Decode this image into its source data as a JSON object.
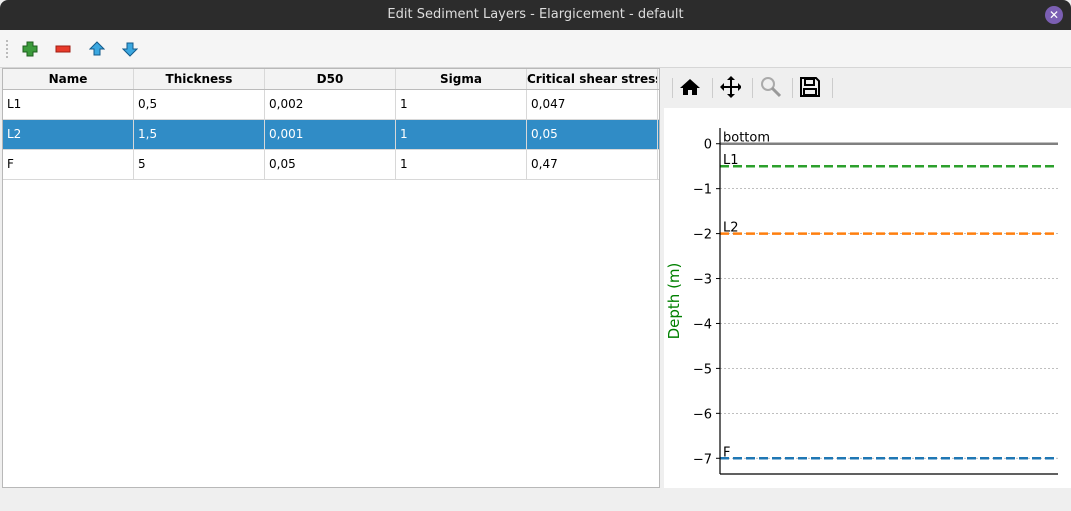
{
  "window": {
    "title": "Edit Sediment Layers - Elargicement - default",
    "close_icon": "close-icon"
  },
  "toolbar": {
    "add": "add-layer",
    "remove": "remove-layer",
    "up": "move-up",
    "down": "move-down"
  },
  "table": {
    "columns": [
      "Name",
      "Thickness",
      "D50",
      "Sigma",
      "Critical shear stress"
    ],
    "rows": [
      [
        "L1",
        "0,5",
        "0,002",
        "1",
        "0,047"
      ],
      [
        "L2",
        "1,5",
        "0,001",
        "1",
        "0,05"
      ],
      [
        "F",
        "5",
        "0,05",
        "1",
        "0,47"
      ]
    ],
    "selected_row": 1,
    "selection_color": "#308cc6"
  },
  "plot_toolbar": [
    "home-icon",
    "pan-icon",
    "zoom-icon",
    "save-icon"
  ],
  "chart_data": {
    "type": "line",
    "ylabel": "Depth (m)",
    "ylabel_color": "#008000",
    "ylim": [
      -7.35,
      0.35
    ],
    "yticks": [
      0,
      -1,
      -2,
      -3,
      -4,
      -5,
      -6,
      -7
    ],
    "ytick_labels": [
      "0",
      "−1",
      "−2",
      "−3",
      "−4",
      "−5",
      "−6",
      "−7"
    ],
    "grid": true,
    "series": [
      {
        "name": "bottom",
        "depth": 0,
        "color": "#808080",
        "style": "solid"
      },
      {
        "name": "L1",
        "depth": -0.5,
        "color": "#2ca02c",
        "style": "dashed"
      },
      {
        "name": "L2",
        "depth": -2,
        "color": "#ff7f0e",
        "style": "dashed"
      },
      {
        "name": "F",
        "depth": -7,
        "color": "#1f77b4",
        "style": "dashed"
      }
    ]
  }
}
